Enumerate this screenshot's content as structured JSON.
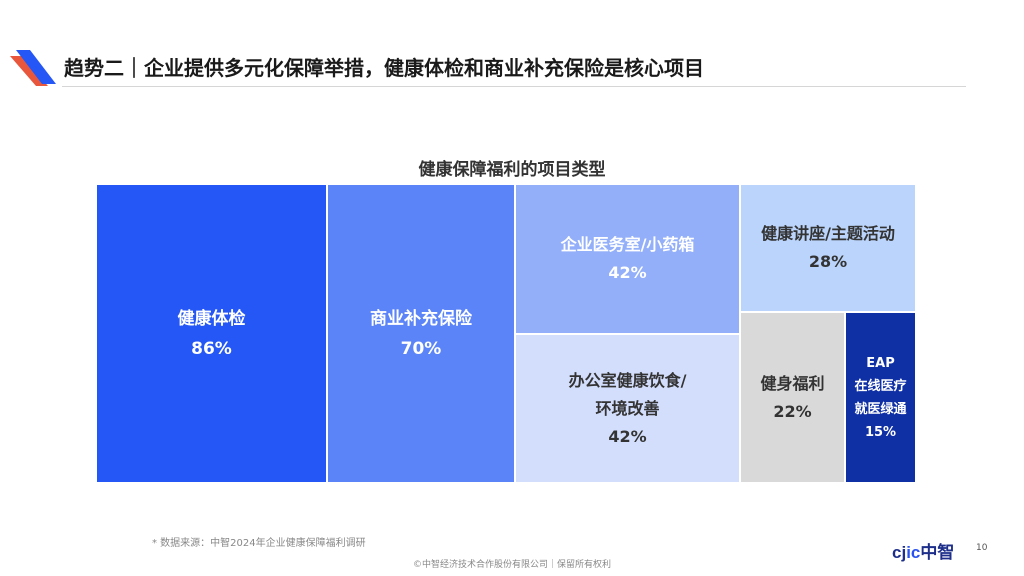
{
  "header": {
    "title": "趋势二｜企业提供多元化保障举措，健康体检和商业补充保险是核心项目"
  },
  "chart_data": {
    "type": "treemap",
    "title": "健康保障福利的项目类型",
    "unit": "%",
    "items": [
      {
        "label": "健康体检",
        "value": 86,
        "display": "86%",
        "color": "#2457f5",
        "text_color": "#ffffff"
      },
      {
        "label": "商业补充保险",
        "value": 70,
        "display": "70%",
        "color": "#5b84f8",
        "text_color": "#ffffff"
      },
      {
        "label": "企业医务室/小药箱",
        "value": 42,
        "display": "42%",
        "color": "#93aff9",
        "text_color": "#ffffff"
      },
      {
        "label": "办公室健康饮食/\n环境改善",
        "value": 42,
        "display": "42%",
        "color": "#d3defc",
        "text_color": "#333333"
      },
      {
        "label": "健康讲座/主题活动",
        "value": 28,
        "display": "28%",
        "color": "#bad4fb",
        "text_color": "#333333"
      },
      {
        "label": "健身福利",
        "value": 22,
        "display": "22%",
        "color": "#d9d9d9",
        "text_color": "#333333"
      },
      {
        "label": "EAP\n在线医疗\n就医绿通",
        "value": 15,
        "display": "15%",
        "color": "#0f2fa5",
        "text_color": "#ffffff"
      }
    ]
  },
  "source_note": "* 数据来源：中智2024年企业健康保障福利调研",
  "footer": "©中智经济技术合作股份有限公司｜保留所有权利",
  "brand": {
    "latin_a": "cj",
    "latin_b": "ic",
    "cn": "中智"
  },
  "page_number": "10",
  "colors": {
    "accent": "#2457f5",
    "logo_red": "#e8573c",
    "logo_blue": "#2457f5"
  }
}
